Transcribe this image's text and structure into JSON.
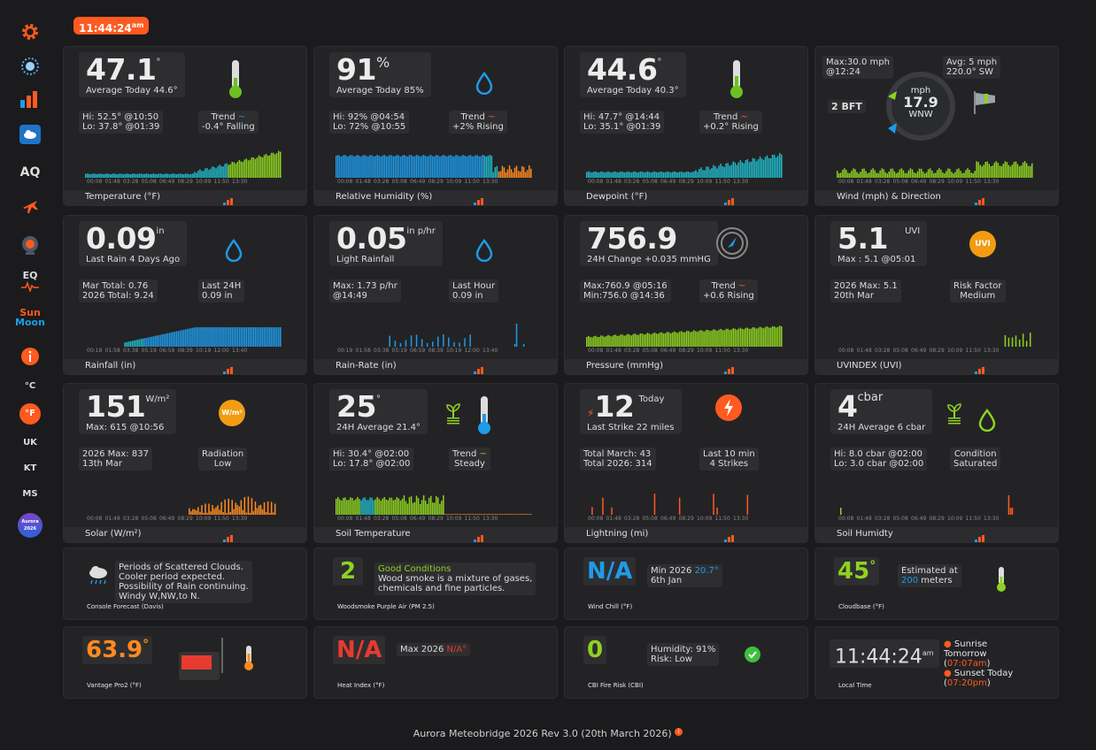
{
  "header": {
    "time": "11:44:24",
    "ampm": "am"
  },
  "sidebar": {
    "aq": "AQ",
    "eq": "EQ",
    "sun": "Sun",
    "moon": "Moon",
    "celsius": "°C",
    "fahrenheit": "°F",
    "uk": "UK",
    "kt": "KT",
    "ms": "MS",
    "badge_top": "Aurora",
    "badge_year": "2026"
  },
  "colors": {
    "accent": "#ff5a1f",
    "blue": "#1e9be8",
    "green": "#8ed220",
    "teal": "#20b8c8"
  },
  "ticks": [
    "00:08",
    "01:48",
    "03:28",
    "05:08",
    "06:49",
    "08:29",
    "10:09",
    "11:50",
    "13:30"
  ],
  "ticks_rain": [
    "00:18",
    "01:58",
    "03:38",
    "05:19",
    "06:59",
    "08:39",
    "10:19",
    "12:00",
    "13:40"
  ],
  "ticks_rate": [
    "00:19",
    "01:58",
    "03:38",
    "05:19",
    "06:59",
    "08:39",
    "10:19",
    "12:00",
    "13:40"
  ],
  "temp": {
    "value": "47.1",
    "unit": "°",
    "sub": "Average Today 44.6°",
    "hi": "Hi: 52.5° @10:50",
    "lo": "Lo: 37.8° @01:39",
    "trend_label": "Trend",
    "trend": "-0.4° Falling",
    "label": "Temperature (°F)"
  },
  "hum": {
    "value": "91",
    "unit": "%",
    "sub": "Average Today 85%",
    "hi": "Hi: 92% @04:54",
    "lo": "Lo: 72% @10:55",
    "trend_label": "Trend",
    "trend": "+2% Rising",
    "label": "Relative Humidity (%)"
  },
  "dew": {
    "value": "44.6",
    "unit": "°",
    "sub": "Average Today 40.3°",
    "hi": "Hi: 47.7° @14:44",
    "lo": "Lo: 35.1° @01:39",
    "trend_label": "Trend",
    "trend": "+0.2° Rising",
    "label": "Dewpoint (°F)"
  },
  "wind": {
    "max": "Max:30.0 mph",
    "max_time": "@12:24",
    "avg": "Avg: 5 mph",
    "avg_dir": "220.0° SW",
    "bft": "2 BFT",
    "unit": "mph",
    "speed": "17.9",
    "dir": "WNW",
    "label": "Wind (mph) & Direction"
  },
  "rain": {
    "value": "0.09",
    "unit": "in",
    "sub": "Last Rain 4 Days Ago",
    "month": "Mar Total: 0.76",
    "year": "2026 Total: 9.24",
    "last24_label": "Last 24H",
    "last24": "0.09 in",
    "label": "Rainfall (in)"
  },
  "rate": {
    "value": "0.05",
    "unit": "in p/hr",
    "sub": "Light Rainfall",
    "max": "Max: 1.73 p/hr",
    "max_time": "@14:49",
    "last_label": "Last Hour",
    "last": "0.09 in",
    "label": "Rain-Rate (in)"
  },
  "press": {
    "value": "756.9",
    "sub": "24H Change +0.035 mmHG",
    "max": "Max:760.9 @05:16",
    "min": "Min:756.0 @14:36",
    "trend_label": "Trend",
    "trend": "+0.6 Rising",
    "label": "Pressure (mmHg)"
  },
  "uv": {
    "value": "5.1",
    "unit": "UVI",
    "sub": "Max : 5.1 @05:01",
    "year": "2026 Max: 5.1",
    "year_date": "20th Mar",
    "risk_label": "Risk Factor",
    "risk": "Medium",
    "icon": "UVI",
    "label": "UVINDEX (UVI)"
  },
  "solar": {
    "value": "151",
    "unit": "W/m²",
    "sub": "Max: 615 @10:56",
    "year": "2026 Max: 837",
    "year_date": "13th Mar",
    "rad_label": "Radiation",
    "rad": "Low",
    "icon": "W/m²",
    "label": "Solar (W/m²)"
  },
  "soil": {
    "value": "25",
    "unit": "°",
    "sub": "24H Average 21.4°",
    "hi": "Hi: 30.4° @02:00",
    "lo": "Lo: 17.8° @02:00",
    "trend_label": "Trend",
    "trend": "Steady",
    "label": "Soil Temperature"
  },
  "light": {
    "value": "12",
    "unit": "Today",
    "sub": "Last Strike  22 miles",
    "month": "Total March: 43",
    "year": "Total 2026: 314",
    "last_label": "Last 10 min",
    "last": "4 Strikes",
    "label": "Lightning (mi)"
  },
  "soilhum": {
    "value": "4",
    "unit": "cbar",
    "sub": "24H Average 6 cbar",
    "hi": "Hi: 8.0 cbar @02:00",
    "lo": "Lo: 3.0 cbar @02:00",
    "cond_label": "Condition",
    "cond": "Saturated",
    "label": "Soil Humidty"
  },
  "forecast": {
    "l1": "Periods of Scattered Clouds.",
    "l2": "Cooler period expected.",
    "l3": "Possibility of Rain continuing.",
    "l4": "Windy W,NW,to N.",
    "label": "Console Forecast (Davis)"
  },
  "aqi": {
    "value": "2",
    "status": "Good Conditions",
    "l1": "Wood smoke is a mixture of gases,",
    "l2": "chemicals and fine particles.",
    "label": "Woodsmoke Purple Air (PM 2.5)"
  },
  "chill": {
    "value": "N/A",
    "min_label": "Min 2026",
    "min": "20.7°",
    "date": "6th Jan",
    "label": "Wind Chill (°F)"
  },
  "cloud": {
    "value": "45",
    "unit": "°",
    "est": "Estimated at",
    "height": "200",
    "meters": "meters",
    "label": "Cloudbase (°F)"
  },
  "vantage": {
    "value": "63.9",
    "unit": "°",
    "label": "Vantage Pro2 (°F)"
  },
  "heat": {
    "value": "N/A",
    "max_label": "Max 2026",
    "max": "N/A°",
    "label": "Heat Index (°F)"
  },
  "fire": {
    "value": "0",
    "hum": "Humidity: 91%",
    "risk": "Risk: Low",
    "label": "CBI Fire Risk (CBI)"
  },
  "local": {
    "time": "11:44:24",
    "ampm": "am",
    "sunrise_label": "Sunrise",
    "tomorrow": "Tomorrow",
    "sunrise": "07:07am",
    "sunset_label": "Sunset Today",
    "sunset": "07:20pm",
    "label": "Local Time"
  },
  "footer": {
    "text": "Aurora Meteobridge 2026 Rev 3.0 (20th March 2026)",
    "info": "i"
  }
}
